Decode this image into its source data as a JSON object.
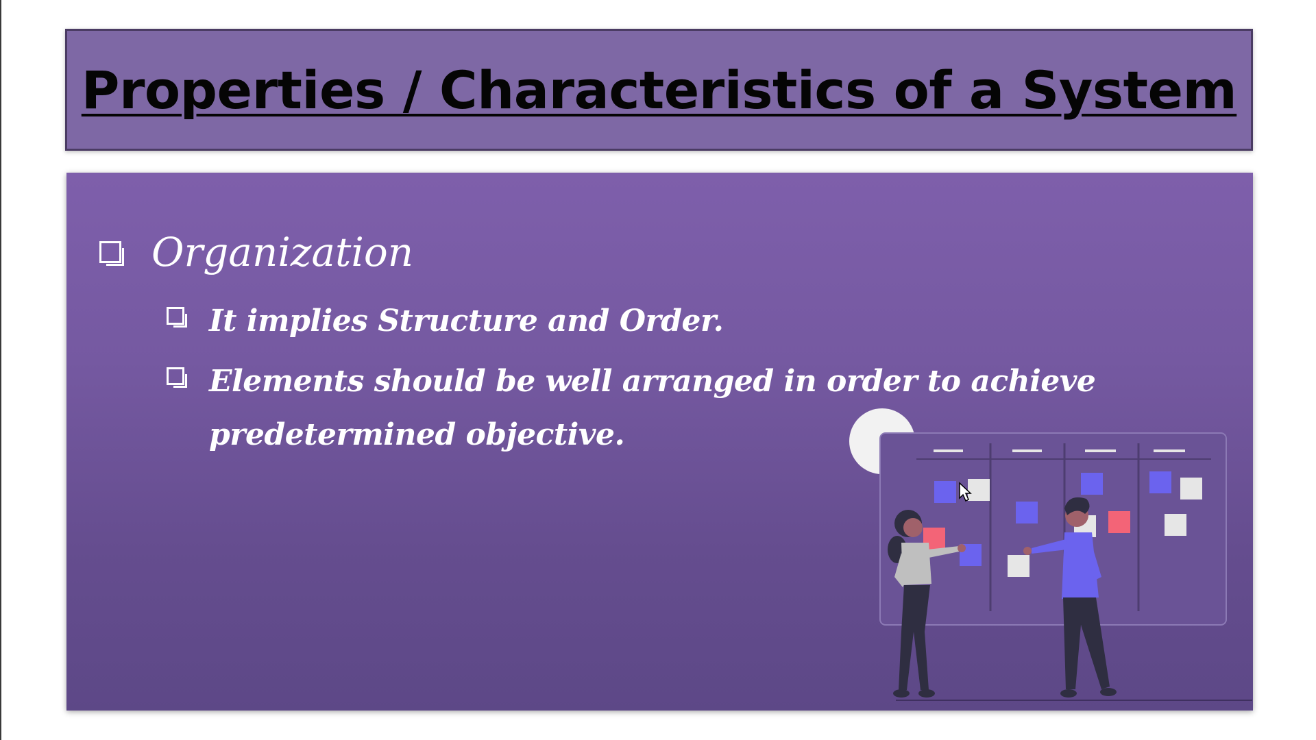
{
  "slide": {
    "title": "Properties / Characteristics of a System",
    "heading": "Organization",
    "points": [
      "It implies Structure and Order.",
      "Elements should be well arranged in order to achieve predetermined objective."
    ]
  },
  "illustration": {
    "name": "team-planning-board-illustration",
    "colors": {
      "blue": "#6b63ee",
      "red": "#f36477",
      "card": "#e6e6e6",
      "dark": "#2f2e41",
      "skin": "#a0616a",
      "sun": "#f2f2f2"
    }
  },
  "theme": {
    "title_bg": "#7e68a5",
    "content_bg": "#7559a1",
    "text": "#ffffff"
  }
}
